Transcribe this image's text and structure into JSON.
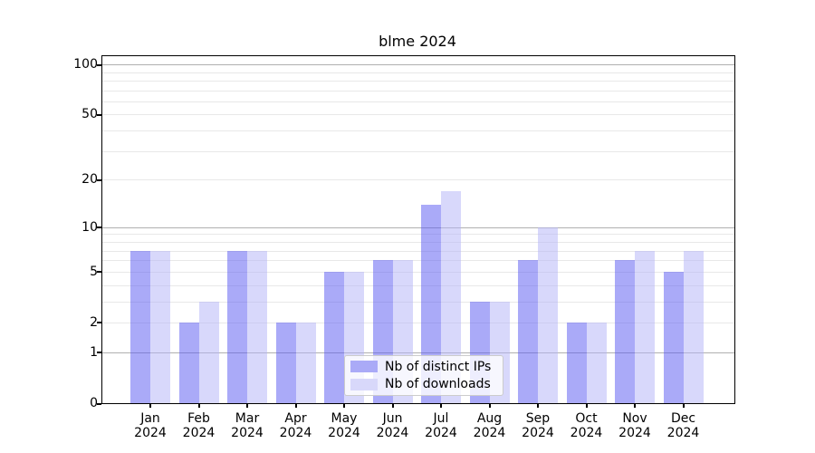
{
  "title": "blme 2024",
  "legend": {
    "position": "bottom-center",
    "items": [
      {
        "label": "Nb of distinct IPs",
        "swatch_color": "#aaaaf7"
      },
      {
        "label": "Nb of downloads",
        "swatch_color": "#d8d8fa"
      }
    ]
  },
  "chart_data": {
    "type": "bar",
    "title": "blme 2024",
    "categories": [
      "Jan",
      "Feb",
      "Mar",
      "Apr",
      "May",
      "Jun",
      "Jul",
      "Aug",
      "Sep",
      "Oct",
      "Nov",
      "Dec"
    ],
    "year_label": "2024",
    "series": [
      {
        "name": "Nb of distinct IPs",
        "fill_color": "rgba(85,85,242,0.5)",
        "solid_color": "#aaaaf7",
        "values": [
          7,
          2,
          7,
          2,
          5,
          6,
          14,
          3,
          6,
          2,
          6,
          5
        ]
      },
      {
        "name": "Nb of downloads",
        "fill_color": "rgba(177,177,247,0.5)",
        "solid_color": "#d8d8fa",
        "values": [
          7,
          3,
          7,
          2,
          5,
          6,
          17,
          3,
          10,
          2,
          7,
          7
        ]
      }
    ],
    "xlabel": "",
    "ylabel": "",
    "y_axis": {
      "scale": "log1p",
      "top_value": 112,
      "ticks": [
        {
          "label": "100",
          "value": 100
        },
        {
          "label": "50",
          "value": 50
        },
        {
          "label": "20",
          "value": 20
        },
        {
          "label": "10",
          "value": 10
        },
        {
          "label": "5",
          "value": 5
        },
        {
          "label": "2",
          "value": 2
        },
        {
          "label": "1",
          "value": 1
        },
        {
          "label": "0",
          "value": 0
        }
      ],
      "decade_gridlines": [
        100,
        10,
        1
      ],
      "light_gridlines": [
        90,
        80,
        70,
        60,
        50,
        40,
        30,
        20,
        9,
        8,
        7,
        6,
        5,
        4,
        3,
        2
      ],
      "grid": "on"
    },
    "colors": {
      "major_grid": "#b0b0b0",
      "minor_grid": "#e8e8e8",
      "spine": "#000000",
      "background": "#ffffff"
    }
  }
}
